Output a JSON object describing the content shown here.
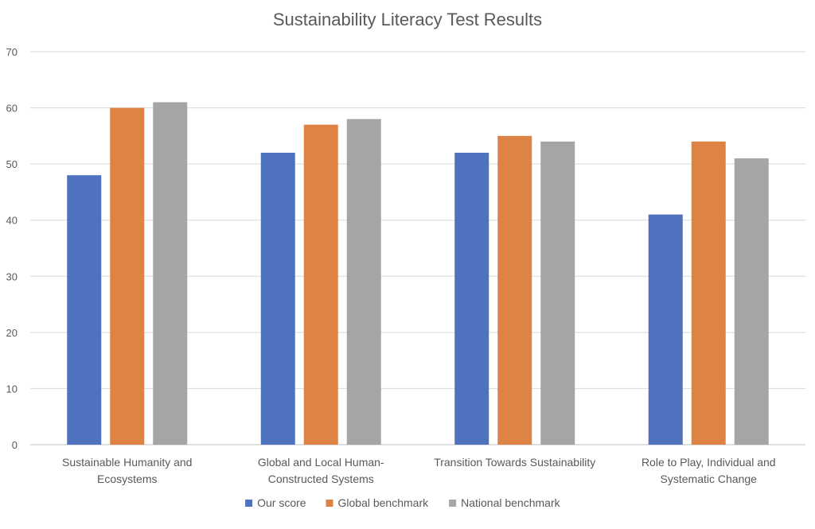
{
  "chart_data": {
    "type": "bar",
    "title": "Sustainability Literacy Test Results",
    "categories": [
      [
        "Sustainable Humanity and",
        "Ecosystems"
      ],
      [
        "Global and Local Human-",
        "Constructed Systems"
      ],
      [
        "Transition Towards Sustainability"
      ],
      [
        "Role to Play, Individual and",
        "Systematic Change"
      ]
    ],
    "series": [
      {
        "name": "Our score",
        "color": "#4f72be",
        "values": [
          48,
          52,
          52,
          41
        ]
      },
      {
        "name": "Global benchmark",
        "color": "#dd8344",
        "values": [
          60,
          57,
          55,
          54
        ]
      },
      {
        "name": "National benchmark",
        "color": "#a5a5a5",
        "values": [
          61,
          58,
          54,
          51
        ]
      }
    ],
    "ylim": [
      0,
      70
    ],
    "yticks": [
      0,
      10,
      20,
      30,
      40,
      50,
      60,
      70
    ],
    "grid": true,
    "legend_position": "bottom"
  }
}
